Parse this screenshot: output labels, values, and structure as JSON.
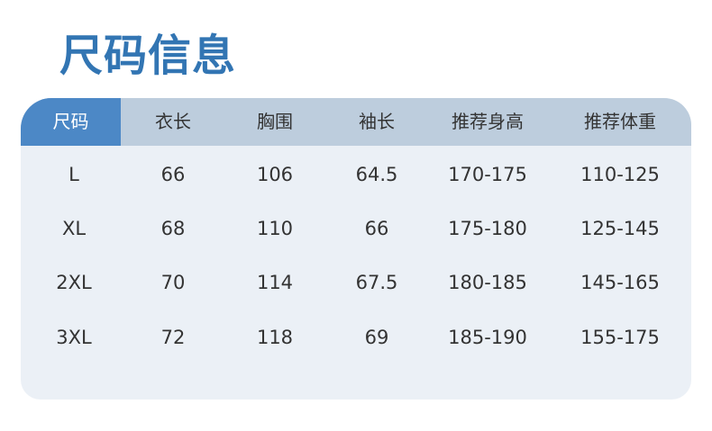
{
  "title": "尺码信息",
  "headers": [
    "尺码",
    "衣长",
    "胸围",
    "袖长",
    "推荐身高",
    "推荐体重"
  ],
  "rows": [
    [
      "L",
      "66",
      "106",
      "64.5",
      "170-175",
      "110-125"
    ],
    [
      "XL",
      "68",
      "110",
      "66",
      "175-180",
      "125-145"
    ],
    [
      "2XL",
      "70",
      "114",
      "67.5",
      "180-185",
      "145-165"
    ],
    [
      "3XL",
      "72",
      "118",
      "69",
      "185-190",
      "155-175"
    ]
  ],
  "colors": {
    "title": "#3275b3",
    "header_first": "#4c88c6",
    "header": "#bdcddd",
    "body": "#ebf0f6"
  }
}
